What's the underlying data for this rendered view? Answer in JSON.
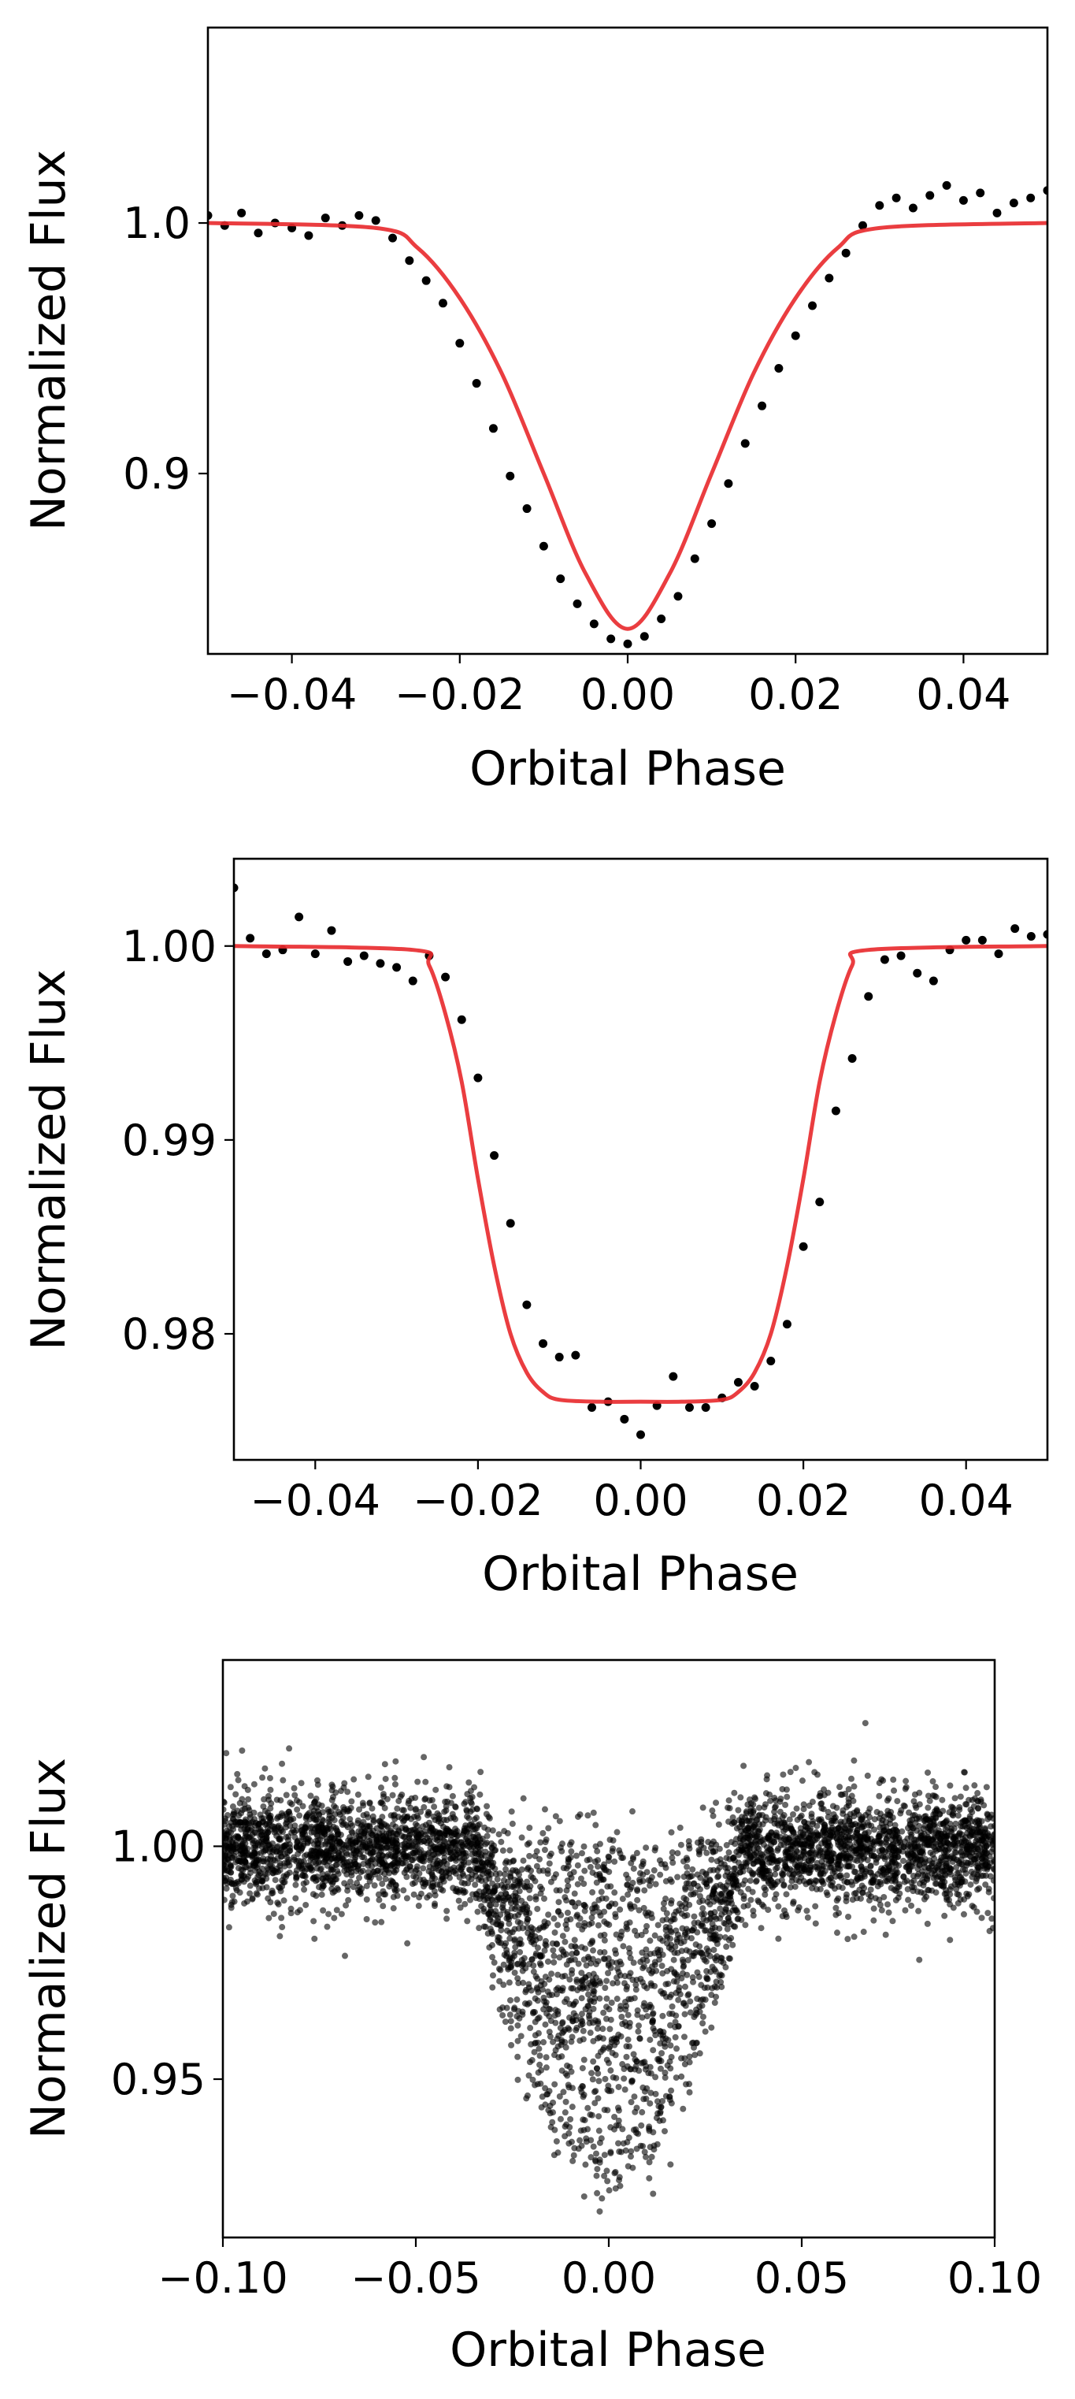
{
  "chart_data": [
    {
      "type": "scatter",
      "xlabel": "Orbital Phase",
      "ylabel": "Normalized Flux",
      "xlim": [
        -0.05,
        0.05
      ],
      "ylim": [
        0.828,
        1.078
      ],
      "xticks": [
        -0.04,
        -0.02,
        0.0,
        0.02,
        0.04
      ],
      "xtick_labels": [
        "−0.04",
        "−0.02",
        "0.00",
        "0.02",
        "0.04"
      ],
      "yticks": [
        0.9,
        1.0
      ],
      "ytick_labels": [
        "0.9",
        "1.0"
      ],
      "grid": false,
      "model": {
        "color": "#e8282b",
        "x": [
          -0.05,
          -0.03,
          -0.025,
          -0.02,
          -0.015,
          -0.01,
          -0.005,
          0.0,
          0.005,
          0.01,
          0.015,
          0.02,
          0.025,
          0.03,
          0.05
        ],
        "y": [
          1.0,
          0.998,
          0.99,
          0.97,
          0.94,
          0.9,
          0.86,
          0.838,
          0.86,
          0.9,
          0.94,
          0.97,
          0.99,
          0.998,
          1.0
        ]
      },
      "observations": {
        "color": "#000000",
        "x": [
          -0.05,
          -0.048,
          -0.046,
          -0.044,
          -0.042,
          -0.04,
          -0.038,
          -0.036,
          -0.034,
          -0.032,
          -0.03,
          -0.028,
          -0.026,
          -0.024,
          -0.022,
          -0.02,
          -0.018,
          -0.016,
          -0.014,
          -0.012,
          -0.01,
          -0.008,
          -0.006,
          -0.004,
          -0.002,
          0.0,
          0.002,
          0.004,
          0.006,
          0.008,
          0.01,
          0.012,
          0.014,
          0.016,
          0.018,
          0.02,
          0.022,
          0.024,
          0.026,
          0.028,
          0.03,
          0.032,
          0.034,
          0.036,
          0.038,
          0.04,
          0.042,
          0.044,
          0.046,
          0.048,
          0.05
        ],
        "y": [
          1.003,
          0.999,
          1.004,
          0.996,
          1.0,
          0.998,
          0.995,
          1.002,
          0.999,
          1.003,
          1.001,
          0.994,
          0.985,
          0.977,
          0.968,
          0.952,
          0.936,
          0.918,
          0.899,
          0.886,
          0.871,
          0.858,
          0.848,
          0.84,
          0.834,
          0.832,
          0.835,
          0.842,
          0.851,
          0.866,
          0.88,
          0.896,
          0.912,
          0.927,
          0.942,
          0.955,
          0.967,
          0.978,
          0.988,
          0.999,
          1.007,
          1.01,
          1.006,
          1.011,
          1.015,
          1.009,
          1.012,
          1.004,
          1.008,
          1.01,
          1.013
        ]
      }
    },
    {
      "type": "scatter",
      "xlabel": "Orbital Phase",
      "ylabel": "Normalized Flux",
      "xlim": [
        -0.05,
        0.05
      ],
      "ylim": [
        0.9735,
        1.0045
      ],
      "xticks": [
        -0.04,
        -0.02,
        0.0,
        0.02,
        0.04
      ],
      "xtick_labels": [
        "−0.04",
        "−0.02",
        "0.00",
        "0.02",
        "0.04"
      ],
      "yticks": [
        0.98,
        0.99,
        1.0
      ],
      "ytick_labels": [
        "0.98",
        "0.99",
        "1.00"
      ],
      "grid": false,
      "model": {
        "color": "#e8282b",
        "x": [
          -0.05,
          -0.028,
          -0.026,
          -0.024,
          -0.022,
          -0.02,
          -0.018,
          -0.016,
          -0.014,
          -0.012,
          -0.01,
          -0.005,
          0.0,
          0.005,
          0.01,
          0.012,
          0.014,
          0.016,
          0.018,
          0.02,
          0.022,
          0.024,
          0.026,
          0.028,
          0.05
        ],
        "y": [
          1.0,
          0.9998,
          0.999,
          0.9965,
          0.993,
          0.988,
          0.9835,
          0.98,
          0.978,
          0.977,
          0.9766,
          0.9765,
          0.9765,
          0.9765,
          0.9766,
          0.977,
          0.978,
          0.98,
          0.9835,
          0.988,
          0.993,
          0.9965,
          0.999,
          0.9998,
          1.0
        ]
      },
      "observations": {
        "color": "#000000",
        "x": [
          -0.05,
          -0.048,
          -0.046,
          -0.044,
          -0.042,
          -0.04,
          -0.038,
          -0.036,
          -0.034,
          -0.032,
          -0.03,
          -0.028,
          -0.026,
          -0.024,
          -0.022,
          -0.02,
          -0.018,
          -0.016,
          -0.014,
          -0.012,
          -0.01,
          -0.008,
          -0.006,
          -0.004,
          -0.002,
          0.0,
          0.002,
          0.004,
          0.006,
          0.008,
          0.01,
          0.012,
          0.014,
          0.016,
          0.018,
          0.02,
          0.022,
          0.024,
          0.026,
          0.028,
          0.03,
          0.032,
          0.034,
          0.036,
          0.038,
          0.04,
          0.042,
          0.044,
          0.046,
          0.048,
          0.05
        ],
        "y": [
          1.003,
          1.0004,
          0.9996,
          0.9998,
          1.0015,
          0.9996,
          1.0008,
          0.9992,
          0.9995,
          0.9991,
          0.9989,
          0.9982,
          0.9995,
          0.9984,
          0.9962,
          0.9932,
          0.9892,
          0.9857,
          0.9815,
          0.9795,
          0.9788,
          0.9789,
          0.9762,
          0.9765,
          0.9756,
          0.9748,
          0.9763,
          0.9778,
          0.9762,
          0.9762,
          0.9767,
          0.9775,
          0.9773,
          0.9786,
          0.9805,
          0.9845,
          0.9868,
          0.9915,
          0.9942,
          0.9974,
          0.9993,
          0.9995,
          0.9986,
          0.9982,
          0.9998,
          1.0003,
          1.0003,
          0.9996,
          1.0009,
          1.0005,
          1.0006
        ]
      }
    },
    {
      "type": "scatter",
      "xlabel": "Orbital Phase",
      "ylabel": "Normalized Flux",
      "xlim": [
        -0.1,
        0.1
      ],
      "ylim": [
        0.916,
        1.04
      ],
      "xticks": [
        -0.1,
        -0.05,
        0.0,
        0.05,
        0.1
      ],
      "xtick_labels": [
        "−0.10",
        "−0.05",
        "0.00",
        "0.05",
        "0.10"
      ],
      "yticks": [
        0.95,
        1.0
      ],
      "ytick_labels": [
        "0.95",
        "1.00"
      ],
      "grid": false,
      "observations": {
        "color": "#000000",
        "opacity": 0.6,
        "description_of_distribution": false,
        "points_approx": 5000,
        "baseline": 1.0,
        "baseline_scatter": 0.006,
        "transit_duration": 0.034,
        "transit_depths": [
          0.006,
          0.02,
          0.03,
          0.04,
          0.05,
          0.065
        ]
      }
    }
  ]
}
